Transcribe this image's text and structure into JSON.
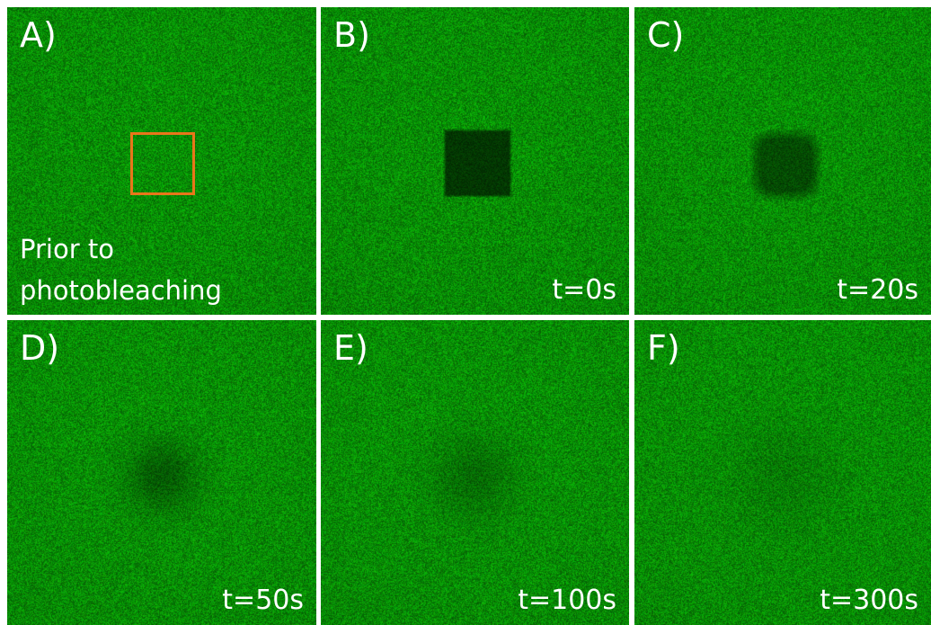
{
  "figure": {
    "colors": {
      "background": "#ffffff",
      "fluorescence": "#1f9a1f",
      "roi_box": "#e8761a",
      "label_text": "#ffffff"
    },
    "panels": [
      {
        "letter": "A)",
        "time": "",
        "caption_line1": "Prior to",
        "caption_line2": "photobleaching",
        "bleach_depth": 0.0,
        "bleach_shape": "none"
      },
      {
        "letter": "B)",
        "time": "t=0s",
        "bleach_depth": 0.62,
        "bleach_shape": "square"
      },
      {
        "letter": "C)",
        "time": "t=20s",
        "bleach_depth": 0.48,
        "bleach_shape": "rounded"
      },
      {
        "letter": "D)",
        "time": "t=50s",
        "bleach_depth": 0.38,
        "bleach_shape": "round"
      },
      {
        "letter": "E)",
        "time": "t=100s",
        "bleach_depth": 0.26,
        "bleach_shape": "round"
      },
      {
        "letter": "F)",
        "time": "t=300s",
        "bleach_depth": 0.14,
        "bleach_shape": "round"
      }
    ]
  }
}
